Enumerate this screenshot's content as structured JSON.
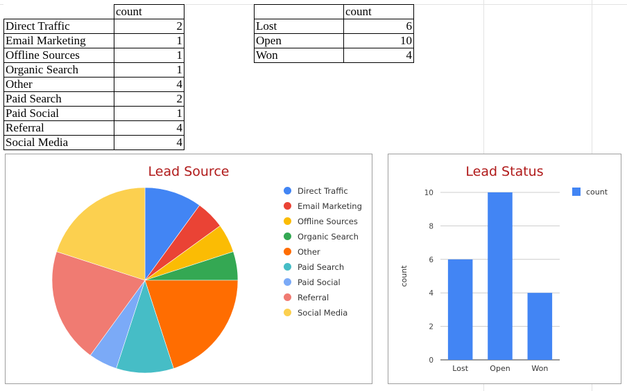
{
  "lead_source_table": {
    "header": "count",
    "rows": [
      {
        "label": "Direct Traffic",
        "count": "2"
      },
      {
        "label": "Email Marketing",
        "count": "1"
      },
      {
        "label": "Offline Sources",
        "count": "1"
      },
      {
        "label": "Organic Search",
        "count": "1"
      },
      {
        "label": "Other",
        "count": "4"
      },
      {
        "label": "Paid Search",
        "count": "2"
      },
      {
        "label": "Paid Social",
        "count": "1"
      },
      {
        "label": "Referral",
        "count": "4"
      },
      {
        "label": "Social Media",
        "count": "4"
      }
    ]
  },
  "lead_status_table": {
    "header": "count",
    "rows": [
      {
        "label": "Lost",
        "count": "6"
      },
      {
        "label": "Open",
        "count": "10"
      },
      {
        "label": "Won",
        "count": "4"
      }
    ]
  },
  "chart_data": [
    {
      "type": "pie",
      "title": "Lead Source",
      "categories": [
        "Direct Traffic",
        "Email Marketing",
        "Offline Sources",
        "Organic Search",
        "Other",
        "Paid Search",
        "Paid Social",
        "Referral",
        "Social Media"
      ],
      "values": [
        2,
        1,
        1,
        1,
        4,
        2,
        1,
        4,
        4
      ],
      "colors": [
        "#4285f4",
        "#ea4335",
        "#fbbc04",
        "#34a853",
        "#ff6d01",
        "#46bdc6",
        "#7baaf7",
        "#f07b72",
        "#fcd04f"
      ],
      "legend": "right"
    },
    {
      "type": "bar",
      "title": "Lead Status",
      "categories": [
        "Lost",
        "Open",
        "Won"
      ],
      "series": [
        {
          "name": "count",
          "values": [
            6,
            10,
            4
          ],
          "color": "#4285f4"
        }
      ],
      "ylabel": "count",
      "ylim": [
        0,
        10
      ],
      "yticks": [
        "0",
        "2",
        "4",
        "6",
        "8",
        "10"
      ],
      "grid": true,
      "legend": "top-right"
    }
  ]
}
